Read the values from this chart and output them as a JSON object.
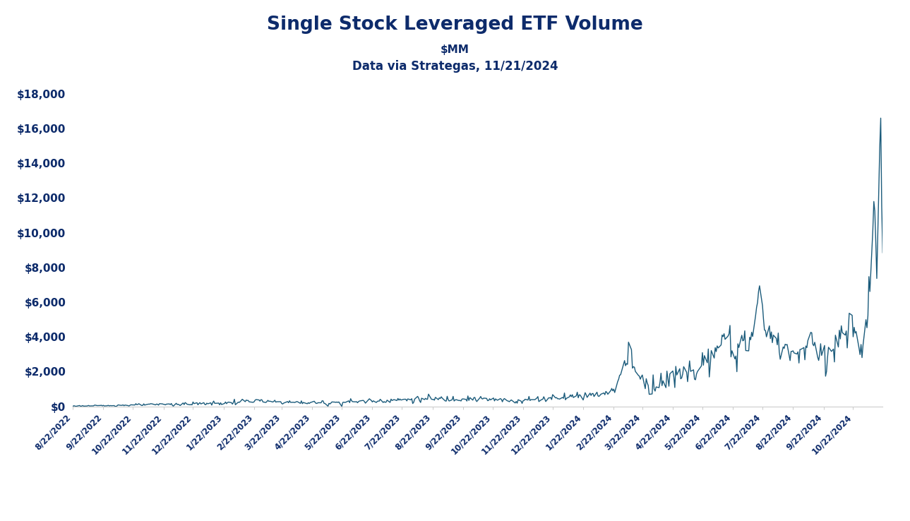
{
  "title": "Single Stock Leveraged ETF Volume",
  "subtitle1": "$MM",
  "subtitle2": "Data via Strategas, 11/21/2024",
  "title_color": "#0D2B6B",
  "line_color": "#1B5B7B",
  "background_color": "#FFFFFF",
  "ylim": [
    0,
    18000
  ],
  "yticks": [
    0,
    2000,
    4000,
    6000,
    8000,
    10000,
    12000,
    14000,
    16000,
    18000
  ],
  "ytick_labels": [
    "$0",
    "$2,000",
    "$4,000",
    "$6,000",
    "$8,000",
    "$10,000",
    "$12,000",
    "$14,000",
    "$16,000",
    "$18,000"
  ]
}
